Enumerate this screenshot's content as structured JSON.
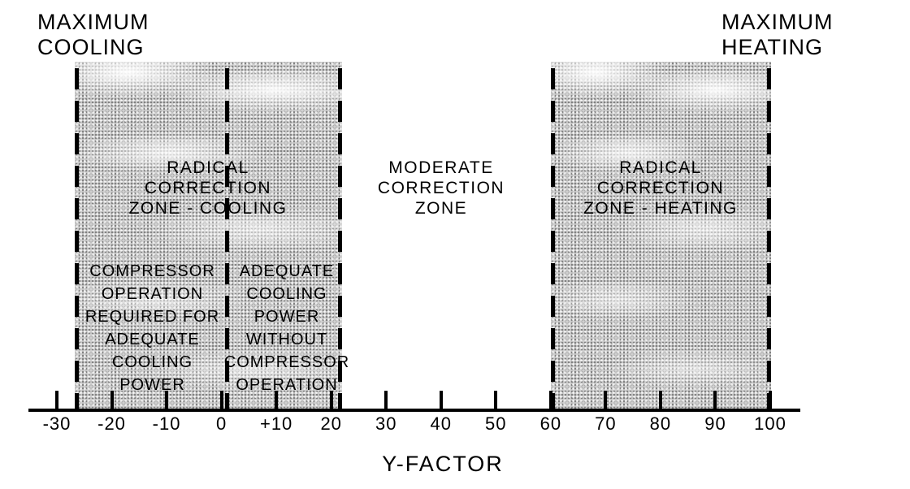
{
  "corner_labels": {
    "left": [
      "MAXIMUM",
      "COOLING"
    ],
    "right": [
      "MAXIMUM",
      "HEATING"
    ]
  },
  "zone_labels": {
    "radical_cooling": [
      "RADICAL CORRECTION",
      "ZONE - COOLING"
    ],
    "moderate": [
      "MODERATE",
      "CORRECTION",
      "ZONE"
    ],
    "radical_heating": [
      "RADICAL CORRECTION",
      "ZONE - HEATING"
    ],
    "compressor_required": [
      "COMPRESSOR",
      "OPERATION",
      "REQUIRED FOR",
      "ADEQUATE",
      "COOLING",
      "POWER"
    ],
    "adequate_without": [
      "ADEQUATE",
      "COOLING",
      "POWER",
      "WITHOUT",
      "COMPRESSOR",
      "OPERATION"
    ]
  },
  "axis": {
    "title": "Y-FACTOR",
    "tick_labels": [
      "-30",
      "-20",
      "-10",
      "0",
      "+10",
      "20",
      "30",
      "40",
      "50",
      "60",
      "70",
      "80",
      "90",
      "100"
    ],
    "tick_values": [
      -30,
      -20,
      -10,
      0,
      10,
      20,
      30,
      40,
      50,
      60,
      70,
      80,
      90,
      100
    ],
    "range": [
      -30,
      100
    ]
  },
  "regions": {
    "cooling_zone": {
      "from_value": -26,
      "to_value": 22,
      "divider_value": 1
    },
    "heating_zone": {
      "from_value": 60,
      "to_value": 100
    }
  },
  "colors": {
    "ink": "#000000",
    "zone_fill": "#cfcfcf",
    "background": "#ffffff"
  }
}
